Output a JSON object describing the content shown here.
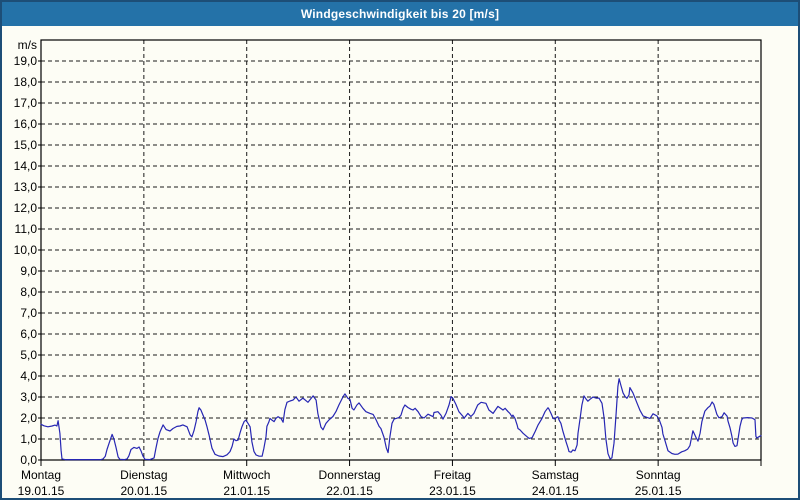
{
  "window": {
    "title": "Windgeschwindigkeit bis 20 [m/s]"
  },
  "colors": {
    "titlebar_bg": "#2472a8",
    "titlebar_text": "#ffffff",
    "window_border": "#1d4e77",
    "canvas_bg": "#fdfdf5",
    "grid_line": "#1a1a1a",
    "axis_line": "#000000",
    "series_line": "#2727b3"
  },
  "chart_data": {
    "type": "line",
    "title": "Windgeschwindigkeit bis 20 [m/s]",
    "ylabel": "m/s",
    "y_unit_label": "m/s",
    "ylim": [
      0,
      20
    ],
    "ytick_step": 1,
    "ytick_labels": [
      "0,0",
      "1,0",
      "2,0",
      "3,0",
      "4,0",
      "5,0",
      "6,0",
      "7,0",
      "8,0",
      "9,0",
      "10,0",
      "11,0",
      "12,0",
      "13,0",
      "14,0",
      "15,0",
      "16,0",
      "17,0",
      "18,0",
      "19,0"
    ],
    "x_range_hours": [
      0,
      168
    ],
    "grid": true,
    "legend": "none",
    "days": [
      {
        "name": "Montag",
        "date": "19.01.15"
      },
      {
        "name": "Dienstag",
        "date": "20.01.15"
      },
      {
        "name": "Mittwoch",
        "date": "21.01.15"
      },
      {
        "name": "Donnerstag",
        "date": "22.01.15"
      },
      {
        "name": "Freitag",
        "date": "23.01.15"
      },
      {
        "name": "Samstag",
        "date": "24.01.15"
      },
      {
        "name": "Sonntag",
        "date": "25.01.15"
      }
    ],
    "series": [
      {
        "name": "Windgeschwindigkeit",
        "unit": "m/s",
        "points_hours_speed": [
          [
            0,
            1.7
          ],
          [
            0.7,
            1.63
          ],
          [
            1.6,
            1.58
          ],
          [
            2.6,
            1.62
          ],
          [
            3.3,
            1.66
          ],
          [
            3.7,
            1.62
          ],
          [
            4,
            1.87
          ],
          [
            4.4,
            1.27
          ],
          [
            4.7,
            0.45
          ],
          [
            4.9,
            0.05
          ],
          [
            5.6,
            0.02
          ],
          [
            8,
            0.02
          ],
          [
            11,
            0.02
          ],
          [
            14,
            0.02
          ],
          [
            14.5,
            0.05
          ],
          [
            15,
            0.18
          ],
          [
            15.4,
            0.5
          ],
          [
            15.9,
            0.8
          ],
          [
            16.3,
            1.05
          ],
          [
            16.6,
            1.22
          ],
          [
            17,
            1.0
          ],
          [
            17.5,
            0.6
          ],
          [
            18,
            0.15
          ],
          [
            18.4,
            0.03
          ],
          [
            19.5,
            0.02
          ],
          [
            20.1,
            0.05
          ],
          [
            20.5,
            0.2
          ],
          [
            21,
            0.5
          ],
          [
            21.7,
            0.6
          ],
          [
            22.4,
            0.55
          ],
          [
            22.9,
            0.62
          ],
          [
            23.3,
            0.45
          ],
          [
            23.8,
            0.18
          ],
          [
            24.3,
            0.03
          ],
          [
            25.4,
            0.02
          ],
          [
            26.4,
            0.1
          ],
          [
            26.8,
            0.55
          ],
          [
            27.3,
            1.03
          ],
          [
            27.8,
            1.35
          ],
          [
            28.5,
            1.67
          ],
          [
            29.2,
            1.45
          ],
          [
            30.1,
            1.38
          ],
          [
            30.8,
            1.5
          ],
          [
            31.7,
            1.6
          ],
          [
            32.4,
            1.62
          ],
          [
            33.1,
            1.67
          ],
          [
            34.1,
            1.58
          ],
          [
            34.8,
            1.2
          ],
          [
            35.2,
            1.1
          ],
          [
            35.7,
            1.4
          ],
          [
            36.2,
            1.83
          ],
          [
            36.6,
            2.3
          ],
          [
            36.9,
            2.49
          ],
          [
            37.3,
            2.38
          ],
          [
            37.8,
            2.14
          ],
          [
            38.3,
            1.9
          ],
          [
            38.7,
            1.6
          ],
          [
            39.2,
            1.2
          ],
          [
            39.9,
            0.56
          ],
          [
            40.6,
            0.27
          ],
          [
            41.5,
            0.19
          ],
          [
            42.5,
            0.16
          ],
          [
            43.4,
            0.25
          ],
          [
            44.1,
            0.4
          ],
          [
            44.6,
            0.65
          ],
          [
            45,
            1.0
          ],
          [
            45.5,
            0.92
          ],
          [
            46,
            0.95
          ],
          [
            46.4,
            1.27
          ],
          [
            46.9,
            1.59
          ],
          [
            47.4,
            1.83
          ],
          [
            47.8,
            1.9
          ],
          [
            48.3,
            1.75
          ],
          [
            48.8,
            1.58
          ],
          [
            49.2,
            0.87
          ],
          [
            49.7,
            0.4
          ],
          [
            50.2,
            0.24
          ],
          [
            50.9,
            0.18
          ],
          [
            51.6,
            0.18
          ],
          [
            52,
            0.56
          ],
          [
            52.5,
            1.11
          ],
          [
            52.7,
            1.6
          ],
          [
            53.2,
            1.83
          ],
          [
            53.4,
            1.98
          ],
          [
            53.9,
            1.9
          ],
          [
            54.4,
            1.83
          ],
          [
            54.8,
            1.98
          ],
          [
            55.3,
            2.06
          ],
          [
            56,
            1.98
          ],
          [
            56.5,
            1.8
          ],
          [
            56.9,
            2.4
          ],
          [
            57.4,
            2.75
          ],
          [
            58.1,
            2.81
          ],
          [
            58.8,
            2.85
          ],
          [
            59.5,
            3.0
          ],
          [
            60.2,
            2.8
          ],
          [
            61.1,
            2.95
          ],
          [
            62.3,
            2.75
          ],
          [
            63.5,
            3.05
          ],
          [
            64.2,
            2.85
          ],
          [
            64.6,
            2.2
          ],
          [
            65.3,
            1.57
          ],
          [
            65.8,
            1.44
          ],
          [
            66.5,
            1.75
          ],
          [
            67.2,
            1.91
          ],
          [
            68.1,
            2.07
          ],
          [
            68.8,
            2.3
          ],
          [
            69.5,
            2.62
          ],
          [
            70.5,
            3.02
          ],
          [
            70.9,
            3.15
          ],
          [
            71.6,
            2.94
          ],
          [
            72.1,
            2.88
          ],
          [
            72.6,
            2.46
          ],
          [
            73,
            2.38
          ],
          [
            73.7,
            2.62
          ],
          [
            74.2,
            2.72
          ],
          [
            75.1,
            2.46
          ],
          [
            75.8,
            2.3
          ],
          [
            76.8,
            2.22
          ],
          [
            77.5,
            2.17
          ],
          [
            78.2,
            1.91
          ],
          [
            78.9,
            1.6
          ],
          [
            79.3,
            1.5
          ],
          [
            80,
            1.1
          ],
          [
            80.6,
            0.56
          ],
          [
            81,
            0.35
          ],
          [
            81.4,
            1.1
          ],
          [
            81.9,
            1.75
          ],
          [
            82.4,
            1.95
          ],
          [
            83.5,
            2.02
          ],
          [
            84,
            2.14
          ],
          [
            84.5,
            2.46
          ],
          [
            84.9,
            2.62
          ],
          [
            85.6,
            2.5
          ],
          [
            86.3,
            2.42
          ],
          [
            86.8,
            2.38
          ],
          [
            87.3,
            2.46
          ],
          [
            88,
            2.3
          ],
          [
            88.7,
            2.06
          ],
          [
            89.4,
            2.0
          ],
          [
            90.3,
            2.18
          ],
          [
            91.5,
            2.06
          ],
          [
            91.7,
            2.26
          ],
          [
            92.6,
            2.3
          ],
          [
            93.3,
            2.14
          ],
          [
            93.8,
            1.95
          ],
          [
            94.5,
            2.22
          ],
          [
            95.2,
            2.62
          ],
          [
            95.7,
            3.02
          ],
          [
            96.1,
            2.94
          ],
          [
            96.8,
            2.65
          ],
          [
            97.5,
            2.3
          ],
          [
            98.5,
            2.07
          ],
          [
            98.7,
            1.98
          ],
          [
            99.6,
            2.22
          ],
          [
            100.3,
            2.07
          ],
          [
            101,
            2.22
          ],
          [
            101.9,
            2.62
          ],
          [
            102.7,
            2.75
          ],
          [
            103.8,
            2.7
          ],
          [
            104.5,
            2.38
          ],
          [
            105.5,
            2.22
          ],
          [
            106.6,
            2.55
          ],
          [
            107.8,
            2.38
          ],
          [
            108.3,
            2.46
          ],
          [
            109,
            2.3
          ],
          [
            109.4,
            2.22
          ],
          [
            109.9,
            2.06
          ],
          [
            110.1,
            2.14
          ],
          [
            110.6,
            1.98
          ],
          [
            111.1,
            1.67
          ],
          [
            111.3,
            1.5
          ],
          [
            111.8,
            1.43
          ],
          [
            112.5,
            1.27
          ],
          [
            113.4,
            1.11
          ],
          [
            113.9,
            1.03
          ],
          [
            114.6,
            1.06
          ],
          [
            115.3,
            1.35
          ],
          [
            116,
            1.67
          ],
          [
            116.9,
            1.98
          ],
          [
            117.6,
            2.3
          ],
          [
            118.3,
            2.49
          ],
          [
            118.5,
            2.43
          ],
          [
            119,
            2.22
          ],
          [
            119.5,
            1.98
          ],
          [
            120,
            1.95
          ],
          [
            120.2,
            2.02
          ],
          [
            120.6,
            2.06
          ],
          [
            120.9,
            1.9
          ],
          [
            121.3,
            1.75
          ],
          [
            121.8,
            1.35
          ],
          [
            122.5,
            0.87
          ],
          [
            123,
            0.56
          ],
          [
            123.2,
            0.4
          ],
          [
            123.7,
            0.37
          ],
          [
            124.1,
            0.48
          ],
          [
            124.6,
            0.44
          ],
          [
            125.1,
            0.72
          ],
          [
            125.3,
            1.27
          ],
          [
            125.8,
            1.98
          ],
          [
            126.2,
            2.62
          ],
          [
            126.7,
            3.05
          ],
          [
            127.2,
            2.9
          ],
          [
            127.6,
            2.8
          ],
          [
            128.1,
            2.89
          ],
          [
            128.8,
            3.0
          ],
          [
            129.5,
            2.95
          ],
          [
            130.2,
            2.95
          ],
          [
            130.9,
            2.7
          ],
          [
            131.4,
            2.0
          ],
          [
            131.8,
            1.0
          ],
          [
            132.3,
            0.3
          ],
          [
            132.8,
            0.05
          ],
          [
            133.2,
            0.1
          ],
          [
            133.7,
            0.8
          ],
          [
            134.2,
            2.2
          ],
          [
            134.6,
            3.5
          ],
          [
            134.9,
            3.87
          ],
          [
            135.3,
            3.55
          ],
          [
            135.8,
            3.2
          ],
          [
            136.3,
            3.02
          ],
          [
            136.7,
            2.94
          ],
          [
            137.2,
            3.1
          ],
          [
            137.4,
            3.45
          ],
          [
            138.1,
            3.2
          ],
          [
            139.1,
            2.7
          ],
          [
            139.8,
            2.35
          ],
          [
            140.5,
            2.1
          ],
          [
            141.4,
            2.03
          ],
          [
            142.1,
            1.98
          ],
          [
            142.8,
            2.2
          ],
          [
            143.7,
            2.1
          ],
          [
            144.2,
            1.95
          ],
          [
            144.9,
            1.55
          ],
          [
            145.1,
            1.24
          ],
          [
            145.6,
            0.92
          ],
          [
            146.3,
            0.44
          ],
          [
            147.2,
            0.31
          ],
          [
            147.9,
            0.27
          ],
          [
            148.6,
            0.28
          ],
          [
            149.5,
            0.39
          ],
          [
            150.2,
            0.44
          ],
          [
            150.9,
            0.52
          ],
          [
            151.4,
            0.68
          ],
          [
            152.1,
            1.39
          ],
          [
            152.8,
            1.08
          ],
          [
            153.3,
            0.9
          ],
          [
            153.8,
            1.28
          ],
          [
            154.2,
            1.83
          ],
          [
            154.9,
            2.33
          ],
          [
            155.6,
            2.49
          ],
          [
            156.1,
            2.57
          ],
          [
            156.6,
            2.76
          ],
          [
            157,
            2.65
          ],
          [
            157.7,
            2.17
          ],
          [
            158.2,
            2.01
          ],
          [
            158.9,
            2.06
          ],
          [
            159.4,
            2.25
          ],
          [
            160.1,
            2.09
          ],
          [
            160.3,
            1.85
          ],
          [
            160.8,
            1.52
          ],
          [
            161.2,
            1.13
          ],
          [
            161.5,
            0.81
          ],
          [
            161.9,
            0.65
          ],
          [
            162.4,
            0.68
          ],
          [
            162.6,
            0.96
          ],
          [
            163.1,
            1.6
          ],
          [
            163.5,
            1.92
          ],
          [
            163.8,
            2.0
          ],
          [
            164.9,
            2.02
          ],
          [
            165.9,
            2.0
          ],
          [
            166.6,
            1.92
          ],
          [
            166.8,
            1.13
          ],
          [
            167,
            1.05
          ],
          [
            167.3,
            1.08
          ],
          [
            167.7,
            1.13
          ],
          [
            168,
            1.16
          ]
        ]
      }
    ]
  }
}
